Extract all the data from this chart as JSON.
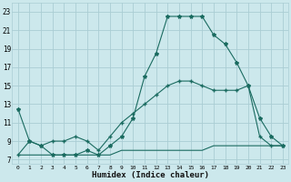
{
  "xlabel": "Humidex (Indice chaleur)",
  "bg_color": "#cce8ec",
  "grid_color": "#aacdd4",
  "line_color": "#1a6b60",
  "xlim": [
    -0.5,
    23.5
  ],
  "ylim": [
    6.5,
    24
  ],
  "xticks": [
    0,
    1,
    2,
    3,
    4,
    5,
    6,
    7,
    8,
    9,
    10,
    11,
    12,
    13,
    14,
    15,
    16,
    17,
    18,
    19,
    20,
    21,
    22,
    23
  ],
  "yticks": [
    7,
    9,
    11,
    13,
    15,
    17,
    19,
    21,
    23
  ],
  "line1_x": [
    0,
    1,
    2,
    3,
    4,
    5,
    6,
    7,
    8,
    9,
    10,
    11,
    12,
    13,
    14,
    15,
    16,
    17,
    18,
    19,
    20,
    21,
    22,
    23
  ],
  "line1_y": [
    12.5,
    9,
    8.5,
    7.5,
    7.5,
    7.5,
    8,
    7.5,
    8.5,
    9.5,
    11.5,
    16,
    18.5,
    22.5,
    22.5,
    22.5,
    22.5,
    20.5,
    19.5,
    17.5,
    15,
    11.5,
    9.5,
    8.5
  ],
  "line2_x": [
    0,
    1,
    2,
    3,
    4,
    5,
    6,
    7,
    8,
    9,
    10,
    11,
    12,
    13,
    14,
    15,
    16,
    17,
    18,
    19,
    20,
    21,
    22,
    23
  ],
  "line2_y": [
    7.5,
    7.5,
    7.5,
    7.5,
    7.5,
    7.5,
    7.5,
    7.5,
    7.5,
    8,
    8,
    8,
    8,
    8,
    8,
    8,
    8,
    8.5,
    8.5,
    8.5,
    8.5,
    8.5,
    8.5,
    8.5
  ],
  "line3_x": [
    0,
    1,
    2,
    3,
    4,
    5,
    6,
    7,
    8,
    9,
    10,
    11,
    12,
    13,
    14,
    15,
    16,
    17,
    18,
    19,
    20,
    21,
    22,
    23
  ],
  "line3_y": [
    7.5,
    9,
    8.5,
    9,
    9,
    9.5,
    9,
    8,
    9.5,
    11,
    12,
    13,
    14,
    15,
    15.5,
    15.5,
    15,
    14.5,
    14.5,
    14.5,
    15,
    9.5,
    8.5,
    8.5
  ]
}
